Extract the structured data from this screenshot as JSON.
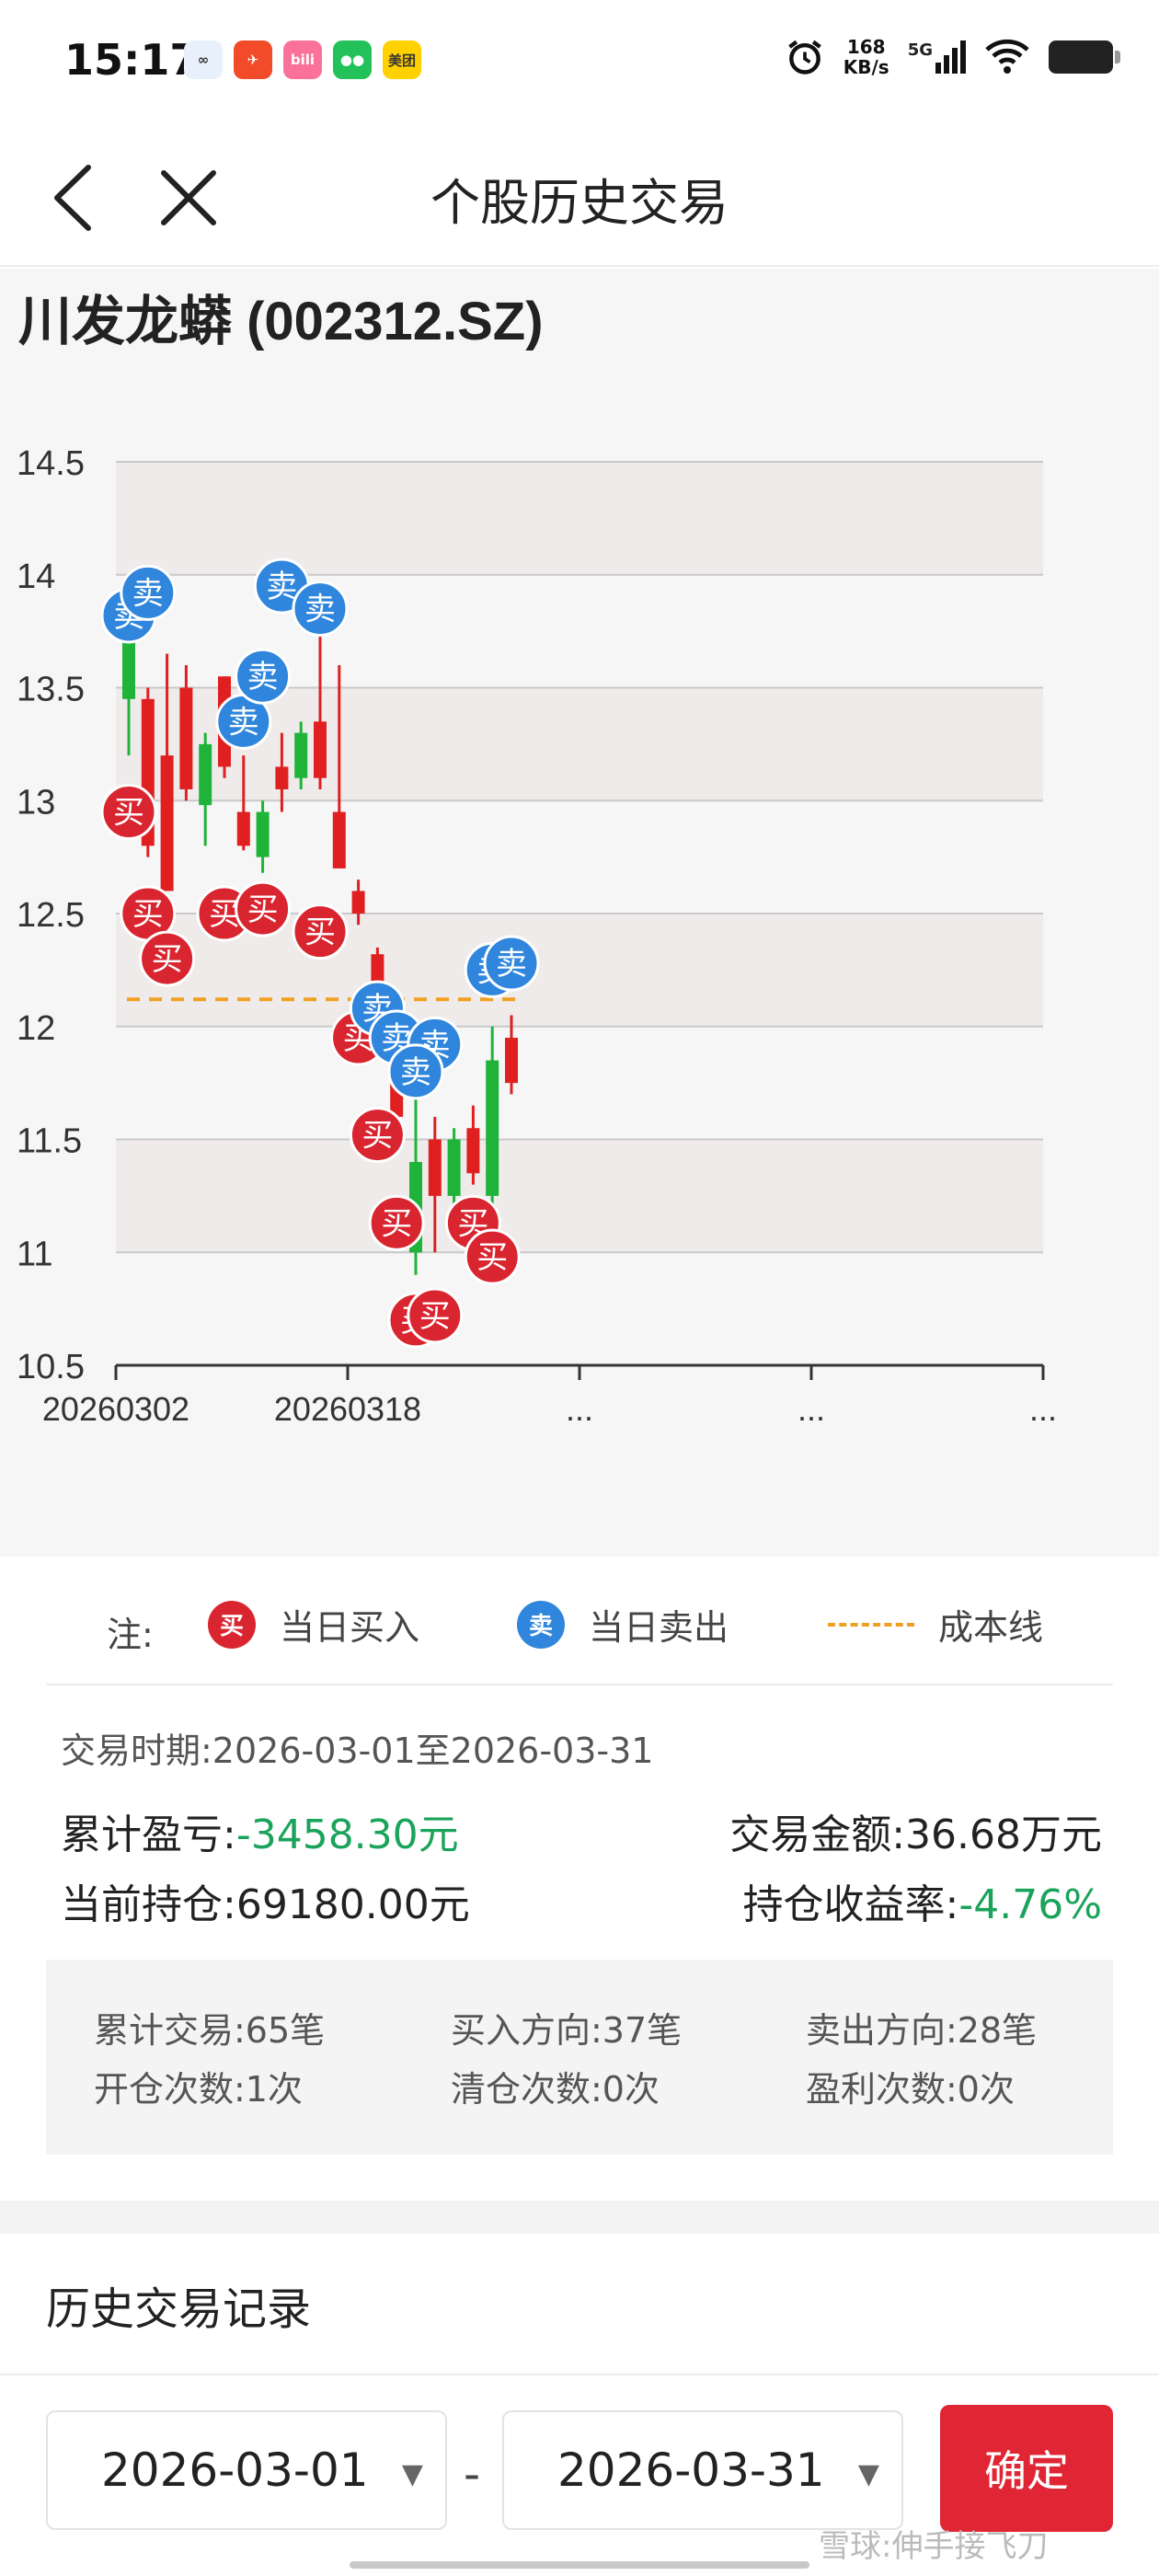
{
  "status_bar": {
    "time": "15:17",
    "net_speed": "168",
    "net_unit": "KB/s",
    "signal": "5G",
    "apps": [
      {
        "icon": "messenger-app-icon",
        "color": "#e8f1fb",
        "text": "∞"
      },
      {
        "icon": "flash-app-icon",
        "color": "#f24b2a",
        "text": "✈"
      },
      {
        "icon": "bilibili-app-icon",
        "color": "#fb7299",
        "text": "bili"
      },
      {
        "icon": "wechat-app-icon",
        "color": "#22c159",
        "text": "●●"
      },
      {
        "icon": "meituan-app-icon",
        "color": "#ffd100",
        "text": "美团"
      }
    ]
  },
  "nav": {
    "title": "个股历史交易"
  },
  "stock": {
    "title": "川发龙蟒 (002312.SZ)"
  },
  "chart_data": {
    "type": "candlestick",
    "ylim": [
      10.5,
      14.5
    ],
    "yticks": [
      "14.5",
      "14",
      "13.5",
      "13",
      "12.5",
      "12",
      "11.5",
      "11",
      "10.5"
    ],
    "xticks": [
      "20260302",
      "20260318",
      "...",
      "...",
      "..."
    ],
    "cost_line": 12.12,
    "candles": [
      {
        "o": 13.9,
        "c": 13.45,
        "h": 14.0,
        "l": 13.2
      },
      {
        "o": 12.8,
        "c": 13.45,
        "h": 13.5,
        "l": 12.75
      },
      {
        "o": 12.6,
        "c": 13.2,
        "h": 13.65,
        "l": 12.6
      },
      {
        "o": 13.05,
        "c": 13.5,
        "h": 13.6,
        "l": 13.0
      },
      {
        "o": 13.25,
        "c": 12.98,
        "h": 13.3,
        "l": 12.8
      },
      {
        "o": 13.15,
        "c": 13.55,
        "h": 13.55,
        "l": 13.1
      },
      {
        "o": 12.8,
        "c": 12.95,
        "h": 13.2,
        "l": 12.78
      },
      {
        "o": 12.95,
        "c": 12.75,
        "h": 13.0,
        "l": 12.68
      },
      {
        "o": 13.05,
        "c": 13.15,
        "h": 13.3,
        "l": 12.95
      },
      {
        "o": 13.3,
        "c": 13.1,
        "h": 13.35,
        "l": 13.05
      },
      {
        "o": 13.1,
        "c": 13.35,
        "h": 13.75,
        "l": 13.05
      },
      {
        "o": 12.7,
        "c": 12.95,
        "h": 13.6,
        "l": 12.7
      },
      {
        "o": 12.5,
        "c": 12.6,
        "h": 12.65,
        "l": 12.45
      },
      {
        "o": 12.18,
        "c": 12.32,
        "h": 12.35,
        "l": 12.05
      },
      {
        "o": 11.6,
        "c": 11.75,
        "h": 11.9,
        "l": 11.55
      },
      {
        "o": 11.4,
        "c": 11.0,
        "h": 11.7,
        "l": 10.9
      },
      {
        "o": 11.25,
        "c": 11.5,
        "h": 11.6,
        "l": 11.0
      },
      {
        "o": 11.5,
        "c": 11.25,
        "h": 11.55,
        "l": 11.2
      },
      {
        "o": 11.35,
        "c": 11.55,
        "h": 11.65,
        "l": 11.3
      },
      {
        "o": 11.85,
        "c": 11.25,
        "h": 12.0,
        "l": 11.2
      },
      {
        "o": 11.75,
        "c": 11.95,
        "h": 12.05,
        "l": 11.7
      }
    ],
    "markers": [
      {
        "type": "sell",
        "i": 0,
        "y": 13.82
      },
      {
        "type": "sell",
        "i": 1,
        "y": 13.92
      },
      {
        "type": "buy",
        "i": 0,
        "y": 12.95
      },
      {
        "type": "buy",
        "i": 1,
        "y": 12.5
      },
      {
        "type": "buy",
        "i": 2,
        "y": 12.3
      },
      {
        "type": "buy",
        "i": 5,
        "y": 12.5
      },
      {
        "type": "buy",
        "i": 7,
        "y": 12.52
      },
      {
        "type": "sell",
        "i": 6,
        "y": 13.35
      },
      {
        "type": "sell",
        "i": 7,
        "y": 13.55
      },
      {
        "type": "sell",
        "i": 8,
        "y": 13.95
      },
      {
        "type": "sell",
        "i": 10,
        "y": 13.85
      },
      {
        "type": "buy",
        "i": 10,
        "y": 12.42
      },
      {
        "type": "buy",
        "i": 12,
        "y": 11.95
      },
      {
        "type": "sell",
        "i": 13,
        "y": 12.08
      },
      {
        "type": "sell",
        "i": 14,
        "y": 11.95
      },
      {
        "type": "sell",
        "i": 16,
        "y": 11.92
      },
      {
        "type": "sell",
        "i": 15,
        "y": 11.8
      },
      {
        "type": "buy",
        "i": 13,
        "y": 11.52
      },
      {
        "type": "buy",
        "i": 14,
        "y": 11.13
      },
      {
        "type": "buy",
        "i": 15,
        "y": 10.7
      },
      {
        "type": "buy",
        "i": 16,
        "y": 10.72
      },
      {
        "type": "buy",
        "i": 18,
        "y": 11.13
      },
      {
        "type": "buy",
        "i": 19,
        "y": 10.98
      },
      {
        "type": "sell",
        "i": 19,
        "y": 12.25
      },
      {
        "type": "sell",
        "i": 20,
        "y": 12.28
      }
    ],
    "colors": {
      "up": "#e02020",
      "down": "#1fb33a",
      "buy": "#d9252f",
      "sell": "#2f86dc",
      "cost": "#f0a020"
    }
  },
  "legend": {
    "note": "注:",
    "buy_icon": "买",
    "buy_label": "当日买入",
    "sell_icon": "卖",
    "sell_label": "当日卖出",
    "cost_label": "成本线"
  },
  "summary": {
    "period": "交易时期:2026-03-01至2026-03-31",
    "pnl_label": "累计盈亏:",
    "pnl_value": "-3458.30元",
    "amount_label": "交易金额:",
    "amount_value": "36.68万元",
    "position_label": "当前持仓:",
    "position_value": "69180.00元",
    "return_label": "持仓收益率:",
    "return_value": "-4.76%"
  },
  "stats": {
    "total_trades": "累计交易:65笔",
    "buy_direction": "买入方向:37笔",
    "sell_direction": "卖出方向:28笔",
    "open_count": "开仓次数:1次",
    "clear_count": "清仓次数:0次",
    "profit_count": "盈利次数:0次"
  },
  "history": {
    "title": "历史交易记录",
    "start_date": "2026-03-01",
    "end_date": "2026-03-31",
    "separator": "-",
    "confirm": "确定",
    "watermark": "雪球:伸手接飞刀"
  }
}
